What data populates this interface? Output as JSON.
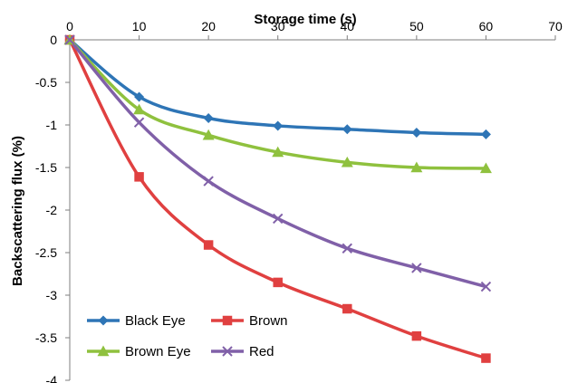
{
  "chart_data": {
    "type": "line",
    "xlabel": "Storage time (s)",
    "ylabel": "Backscattering flux (%)",
    "xlim": [
      0,
      70
    ],
    "ylim": [
      -4,
      0
    ],
    "x_ticks": [
      "0",
      "10",
      "20",
      "30",
      "40",
      "50",
      "60",
      "70"
    ],
    "y_ticks": [
      "0",
      "-0.5",
      "-1",
      "-1.5",
      "-2",
      "-2.5",
      "-3",
      "-3.5",
      "-4"
    ],
    "x_axis_position": "top",
    "grid": false,
    "legend_position": "bottom-left",
    "x": [
      0,
      10,
      20,
      30,
      40,
      50,
      60
    ],
    "series": [
      {
        "name": "Black Eye",
        "color": "#2e75b6",
        "marker": "diamond",
        "values": [
          0,
          -0.67,
          -0.92,
          -1.01,
          -1.05,
          -1.09,
          -1.11
        ]
      },
      {
        "name": "Brown",
        "color": "#e04040",
        "marker": "square",
        "values": [
          0,
          -1.61,
          -2.41,
          -2.85,
          -3.16,
          -3.48,
          -3.74
        ]
      },
      {
        "name": "Brown Eye",
        "color": "#8fc13e",
        "marker": "triangle",
        "values": [
          0,
          -0.82,
          -1.12,
          -1.32,
          -1.44,
          -1.5,
          -1.51
        ]
      },
      {
        "name": "Red",
        "color": "#8060a8",
        "marker": "cross",
        "values": [
          0,
          -0.97,
          -1.66,
          -2.1,
          -2.45,
          -2.68,
          -2.9
        ]
      }
    ]
  }
}
